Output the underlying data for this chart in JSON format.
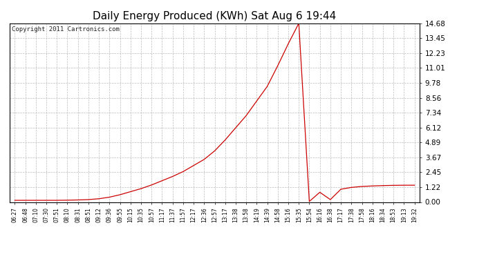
{
  "title": "Daily Energy Produced (KWh) Sat Aug 6 19:44",
  "copyright_text": "Copyright 2011 Cartronics.com",
  "line_color": "#cc0000",
  "background_color": "#ffffff",
  "plot_bg_color": "#ffffff",
  "grid_color": "#bbbbbb",
  "yticks": [
    0.0,
    1.22,
    2.45,
    3.67,
    4.89,
    6.12,
    7.34,
    8.56,
    9.78,
    11.01,
    12.23,
    13.45,
    14.68
  ],
  "ylim": [
    0.0,
    14.68
  ],
  "x_labels": [
    "06:27",
    "06:48",
    "07:10",
    "07:30",
    "07:51",
    "08:10",
    "08:31",
    "08:51",
    "09:12",
    "09:36",
    "09:55",
    "10:15",
    "10:35",
    "10:57",
    "11:17",
    "11:37",
    "11:57",
    "12:17",
    "12:36",
    "12:57",
    "13:17",
    "13:38",
    "13:58",
    "14:19",
    "14:39",
    "14:58",
    "15:16",
    "15:35",
    "15:54",
    "16:16",
    "16:38",
    "17:17",
    "17:38",
    "17:58",
    "18:16",
    "18:34",
    "18:53",
    "19:13",
    "19:32"
  ],
  "y_values": [
    0.14,
    0.14,
    0.14,
    0.14,
    0.14,
    0.15,
    0.17,
    0.2,
    0.27,
    0.4,
    0.6,
    0.85,
    1.1,
    1.4,
    1.75,
    2.1,
    2.5,
    3.0,
    3.5,
    4.2,
    5.1,
    6.1,
    7.1,
    8.3,
    9.5,
    11.2,
    13.0,
    14.68,
    0.05,
    0.8,
    0.2,
    1.05,
    1.2,
    1.28,
    1.32,
    1.35,
    1.37,
    1.38,
    1.38
  ],
  "figsize": [
    6.9,
    3.75
  ],
  "dpi": 100,
  "title_fontsize": 11,
  "ytick_fontsize": 7.5,
  "xtick_fontsize": 5.5
}
